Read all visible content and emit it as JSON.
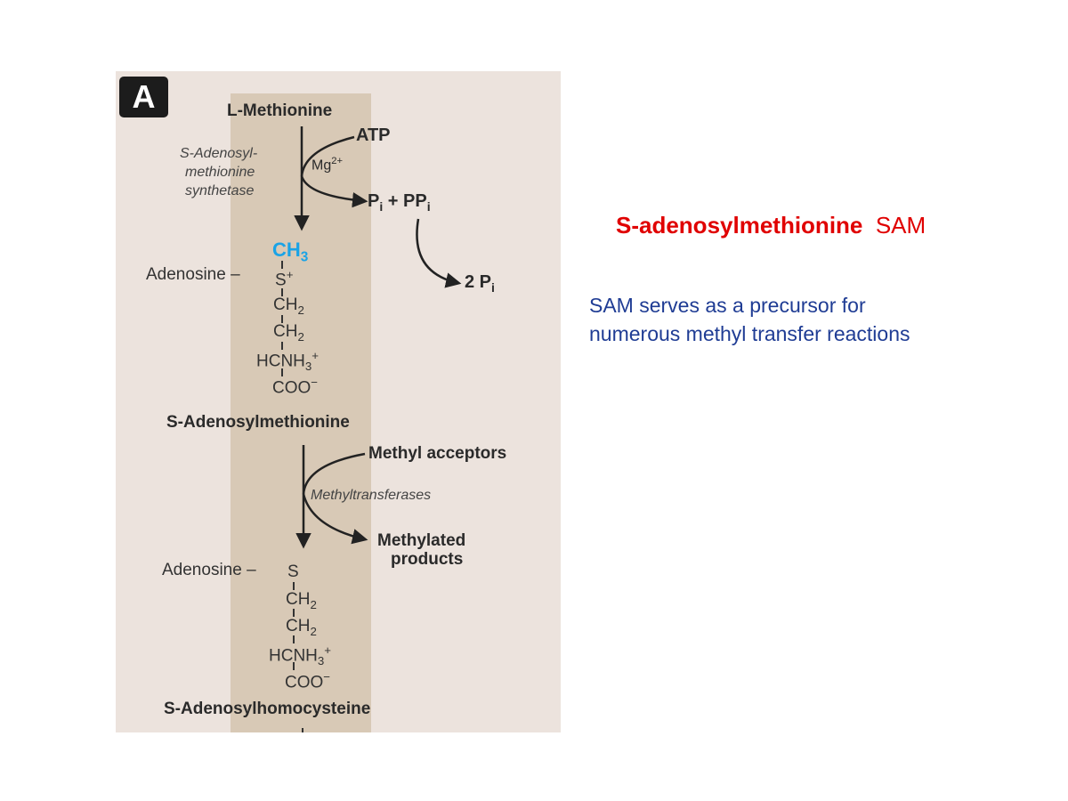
{
  "figure": {
    "panel_label": "A",
    "start_compound": "L-Methionine",
    "atp": "ATP",
    "mg": {
      "base": "Mg",
      "sup": "2+"
    },
    "enzyme1": [
      "S-Adenosyl-",
      "methionine",
      "synthetase"
    ],
    "pi_pp": {
      "p1": "P",
      "s1": "i",
      "mid": " + PP",
      "s2": "i"
    },
    "two_pi": {
      "p": "2 P",
      "s": "i"
    },
    "sam_structure": {
      "methyl": {
        "base": "CH",
        "sub": "3"
      },
      "adenosine": "Adenosine",
      "dash": "–",
      "sulfur": {
        "base": "S",
        "sup": "+"
      },
      "ch2_a": {
        "base": "CH",
        "sub": "2"
      },
      "ch2_b": {
        "base": "CH",
        "sub": "2"
      },
      "hcnh3": {
        "pre": "HCNH",
        "sub": "3",
        "sup": "+"
      },
      "coo": {
        "base": "COO",
        "sup": "−"
      }
    },
    "sam_name": "S-Adenosylmethionine",
    "methyl_acceptors": "Methyl acceptors",
    "enzyme2": "Methyltransferases",
    "methylated_products": [
      "Methylated",
      "products"
    ],
    "sah_structure": {
      "adenosine": "Adenosine",
      "dash": "–",
      "sulfur": "S",
      "ch2_a": {
        "base": "CH",
        "sub": "2"
      },
      "ch2_b": {
        "base": "CH",
        "sub": "2"
      },
      "hcnh3": {
        "pre": "HCNH",
        "sub": "3",
        "sup": "+"
      },
      "coo": {
        "base": "COO",
        "sup": "−"
      }
    },
    "sah_name": "S-Adenosylhomocysteine"
  },
  "slide": {
    "title_name": "S-adenosylmethionine",
    "title_abbrev": "SAM",
    "description": [
      "SAM serves as a precursor for",
      "numerous methyl transfer reactions"
    ]
  },
  "colors": {
    "title": "#e00000",
    "description": "#1f3c94",
    "methyl": "#1aa3e6",
    "figure_bg": "#ece3dd",
    "band": "#d8c9b6"
  }
}
